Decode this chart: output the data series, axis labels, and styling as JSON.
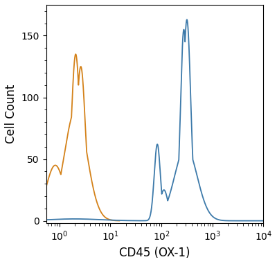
{
  "title": "",
  "xlabel": "CD45 (OX-1)",
  "ylabel": "Cell Count",
  "xlim": [
    0.55,
    10000
  ],
  "ylim": [
    -2,
    175
  ],
  "yticks": [
    0,
    50,
    100,
    150
  ],
  "blue_color": "#3d7aaa",
  "orange_color": "#d4821a",
  "linewidth": 1.3,
  "background_color": "#ffffff",
  "xlabel_fontsize": 12,
  "ylabel_fontsize": 12,
  "tick_fontsize": 10
}
